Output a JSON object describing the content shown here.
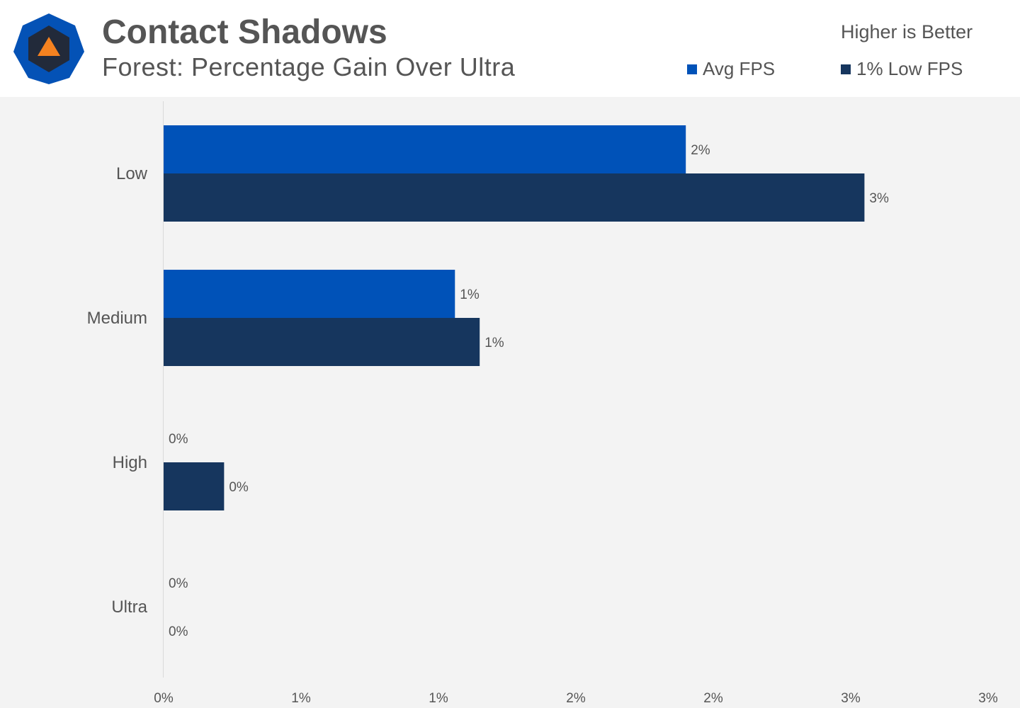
{
  "header": {
    "title": "Contact Shadows",
    "subtitle": "Forest: Percentage Gain Over Ultra",
    "note": "Higher is Better",
    "logo_icon": "hexagon-triangle-logo-icon"
  },
  "colors": {
    "avg": "#0052b8",
    "low": "#16365e",
    "logo_outer": "#0452b6",
    "logo_inner": "#222a3a",
    "logo_triangle": "#f58220",
    "axis_text": "#555555"
  },
  "chart_data": {
    "type": "bar",
    "orientation": "horizontal",
    "title": "Contact Shadows",
    "subtitle": "Forest: Percentage Gain Over Ultra",
    "categories": [
      "Low",
      "Medium",
      "High",
      "Ultra"
    ],
    "series": [
      {
        "name": "Avg FPS",
        "values": [
          1.9,
          1.06,
          0,
          0
        ],
        "labels": [
          "2%",
          "1%",
          "0%",
          "0%"
        ]
      },
      {
        "name": "1% Low FPS",
        "values": [
          2.55,
          1.15,
          0.22,
          0
        ],
        "labels": [
          "3%",
          "1%",
          "0%",
          "0%"
        ]
      }
    ],
    "xlim": [
      0,
      3.0
    ],
    "xticks": [
      0,
      0.5,
      1.0,
      1.5,
      2.0,
      2.5,
      3.0
    ],
    "xtick_labels": [
      "0%",
      "1%",
      "1%",
      "2%",
      "2%",
      "3%",
      "3%"
    ],
    "legend_position": "top-right",
    "grid": false
  }
}
